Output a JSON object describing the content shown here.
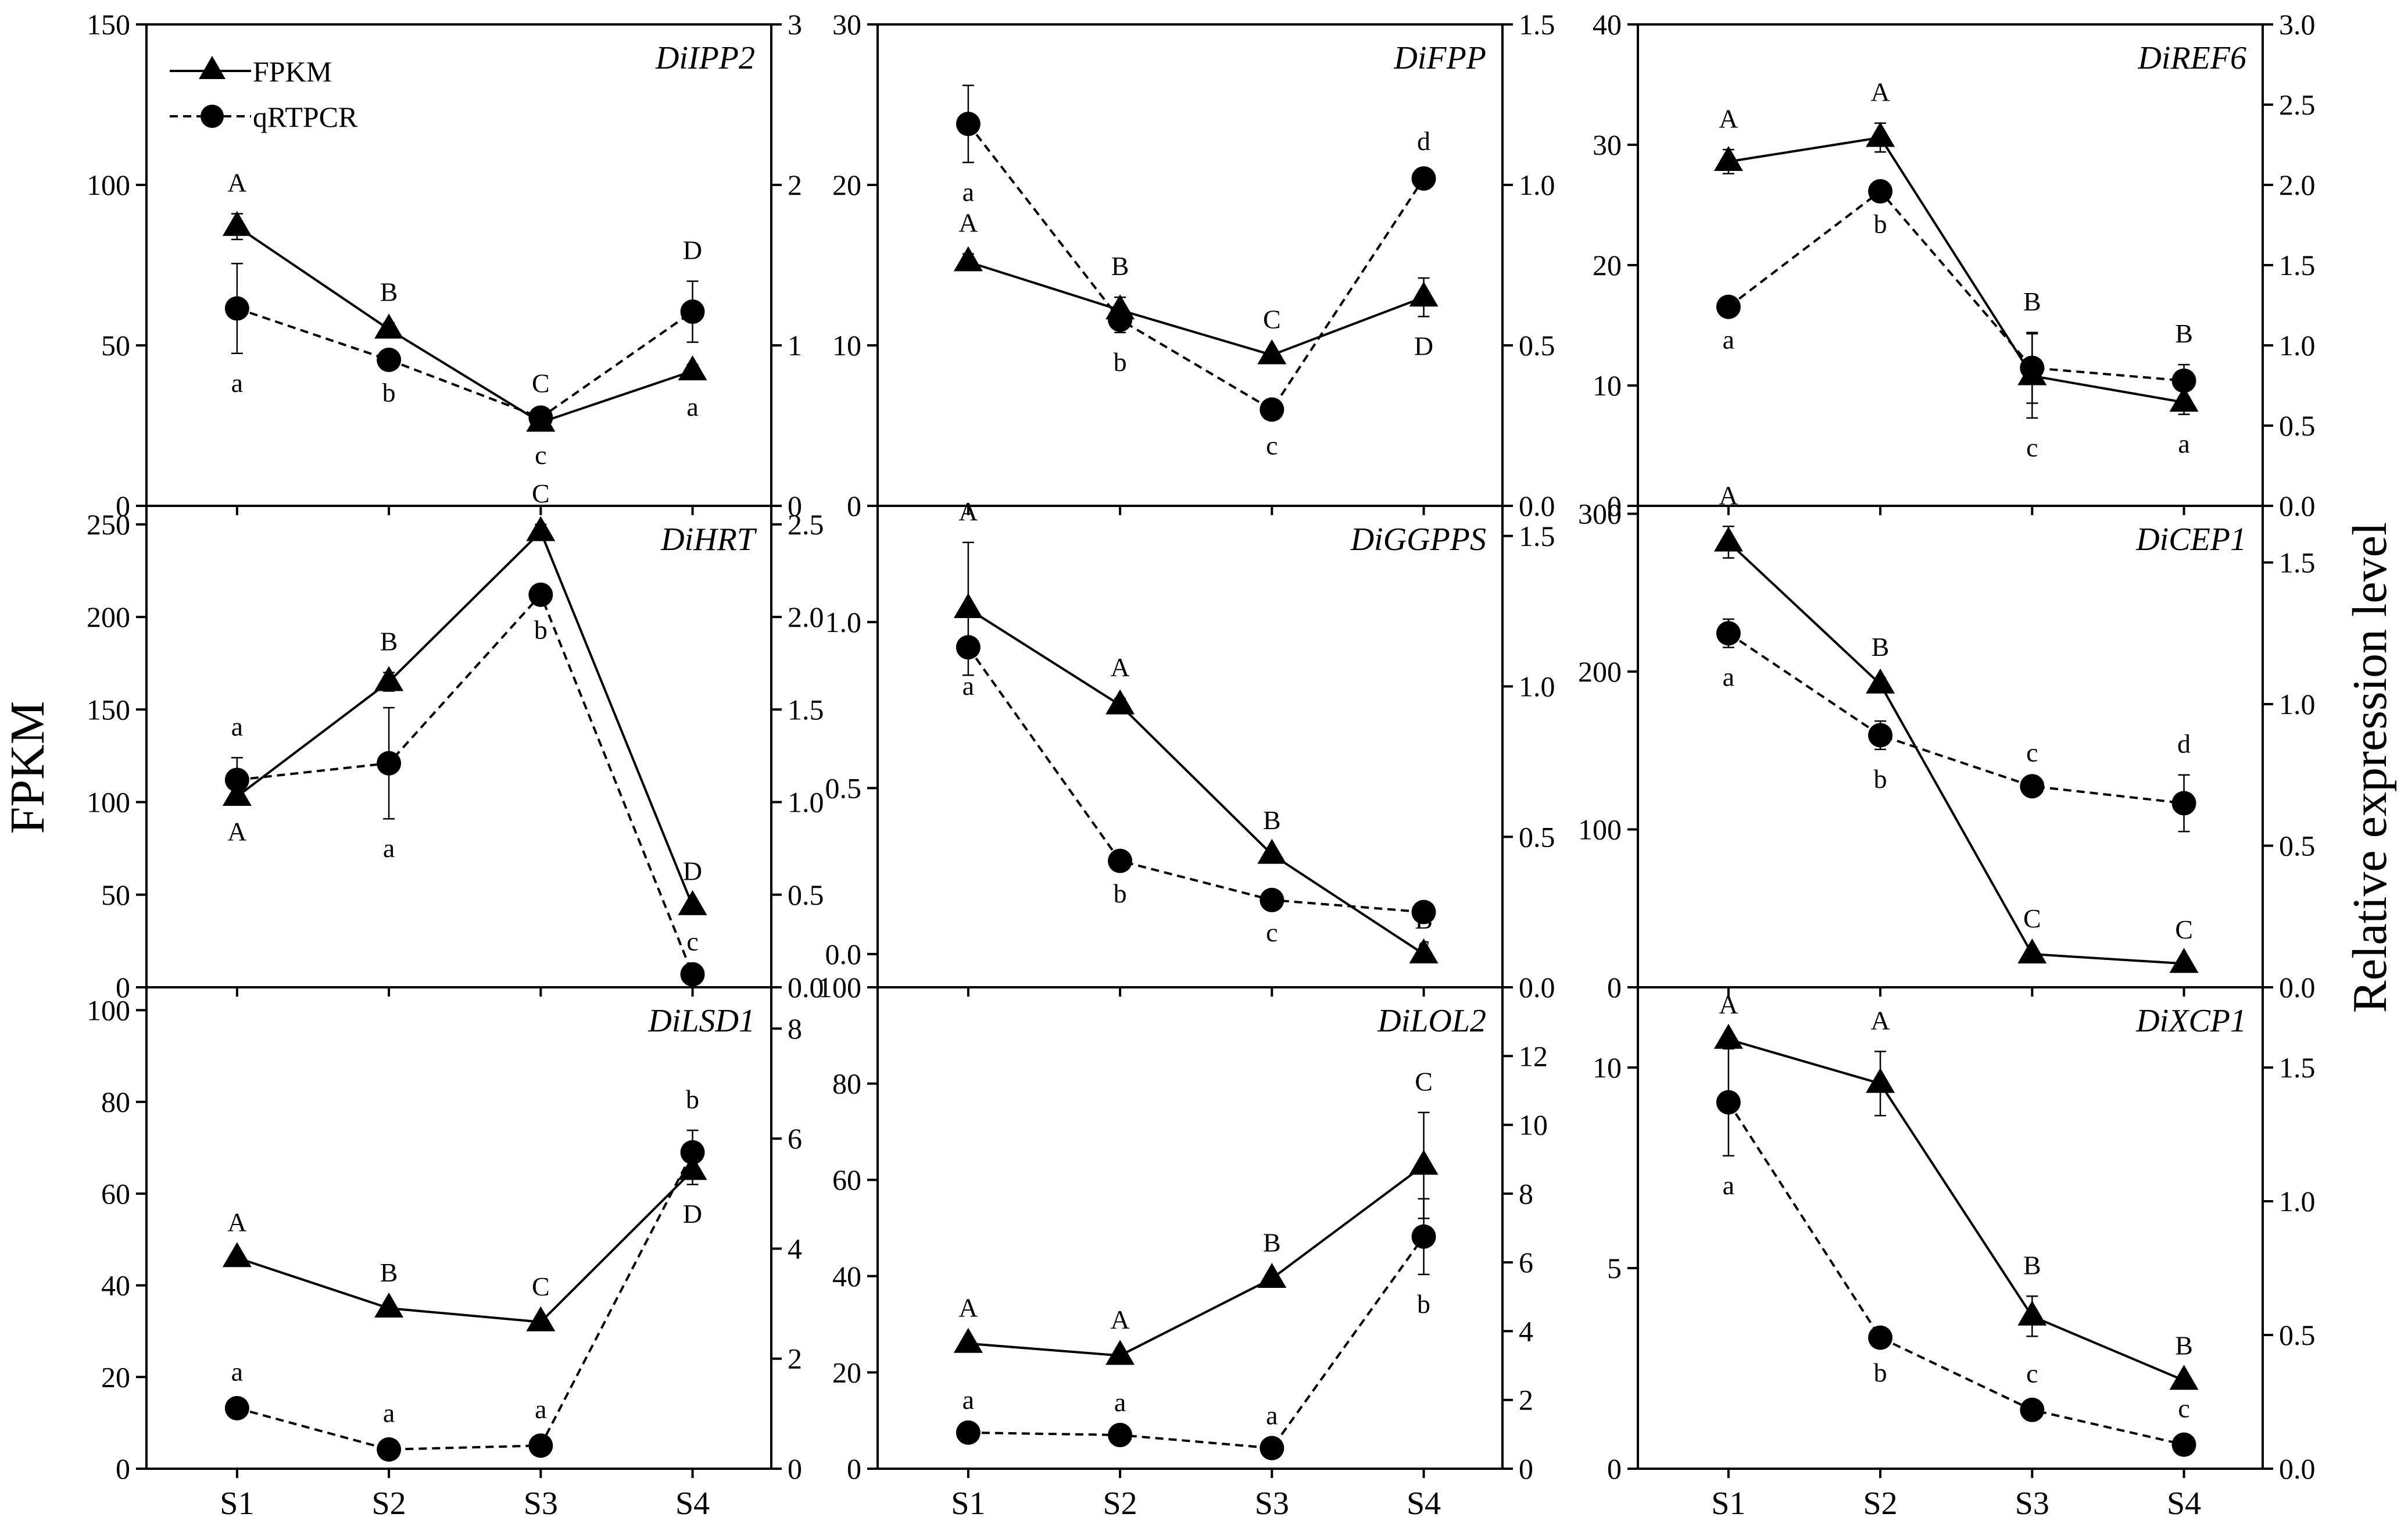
{
  "figure": {
    "ylabel_left": "FPKM",
    "ylabel_right": "Relative expression level",
    "legend": {
      "fpkm_label": "FPKM",
      "qrt_label": "qRTPCR"
    },
    "x_categories": [
      "S1",
      "S2",
      "S3",
      "S4"
    ]
  },
  "chart_data": [
    {
      "type": "line",
      "title": "DiIPP2",
      "categories": [
        "S1",
        "S2",
        "S3",
        "S4"
      ],
      "ylim_left": [
        0,
        150
      ],
      "yticks_left": [
        0,
        50,
        100,
        150
      ],
      "ylim_right": [
        0,
        3
      ],
      "yticks_right": [
        0,
        1,
        2,
        3
      ],
      "series": [
        {
          "name": "FPKM",
          "axis": "left",
          "values": [
            87,
            55,
            26,
            42
          ],
          "errors": [
            4,
            2,
            1,
            2
          ],
          "letters": [
            "A",
            "B",
            "c",
            "a"
          ],
          "letter_pos": [
            "above",
            "above",
            "below",
            "below"
          ]
        },
        {
          "name": "qRTPCR",
          "axis": "right",
          "values": [
            1.23,
            0.91,
            0.55,
            1.21
          ],
          "errors": [
            0.28,
            0.02,
            0.02,
            0.19
          ],
          "letters": [
            "a",
            "b",
            "C",
            "D"
          ],
          "letter_pos": [
            "below",
            "below",
            "above",
            "above"
          ]
        }
      ]
    },
    {
      "type": "line",
      "title": "DiFPP",
      "categories": [
        "S1",
        "S2",
        "S3",
        "S4"
      ],
      "ylim_left": [
        0,
        30
      ],
      "yticks_left": [
        0,
        10,
        20,
        30
      ],
      "ylim_right": [
        0,
        1.5
      ],
      "yticks_right": [
        0.0,
        0.5,
        1.0,
        1.5
      ],
      "series": [
        {
          "name": "FPKM",
          "axis": "left",
          "values": [
            15.2,
            12.2,
            9.4,
            13.0
          ],
          "errors": [
            0.5,
            0.8,
            0.3,
            1.2
          ],
          "letters": [
            "A",
            "B",
            "C",
            "D"
          ],
          "letter_pos": [
            "above",
            "above",
            "above",
            "below"
          ]
        },
        {
          "name": "qRTPCR",
          "axis": "right",
          "values": [
            1.19,
            0.58,
            0.3,
            1.02
          ],
          "errors": [
            0.12,
            0.04,
            0.02,
            0.02
          ],
          "letters": [
            "a",
            "b",
            "c",
            "d"
          ],
          "letter_pos": [
            "below",
            "below",
            "below",
            "above"
          ]
        }
      ]
    },
    {
      "type": "line",
      "title": "DiREF6",
      "categories": [
        "S1",
        "S2",
        "S3",
        "S4"
      ],
      "ylim_left": [
        0,
        40
      ],
      "yticks_left": [
        0,
        10,
        20,
        30,
        40
      ],
      "ylim_right": [
        0,
        3
      ],
      "yticks_right": [
        0.0,
        0.5,
        1.0,
        1.5,
        2.0,
        2.5,
        3.0
      ],
      "series": [
        {
          "name": "FPKM",
          "axis": "left",
          "values": [
            28.6,
            30.6,
            10.8,
            8.6
          ],
          "errors": [
            1.0,
            1.2,
            3.5,
            1.0
          ],
          "letters": [
            "A",
            "A",
            "c",
            "a"
          ],
          "letter_pos": [
            "above",
            "above",
            "below",
            "below"
          ]
        },
        {
          "name": "qRTPCR",
          "axis": "right",
          "values": [
            1.24,
            1.96,
            0.86,
            0.78
          ],
          "errors": [
            0.02,
            0.02,
            0.22,
            0.1
          ],
          "letters": [
            "a",
            "b",
            "B",
            "B"
          ],
          "letter_pos": [
            "below",
            "below",
            "above",
            "above"
          ]
        }
      ]
    },
    {
      "type": "line",
      "title": "DiHRT",
      "categories": [
        "S1",
        "S2",
        "S3",
        "S4"
      ],
      "ylim_left": [
        0,
        260
      ],
      "yticks_left": [
        0,
        50,
        100,
        150,
        200,
        250
      ],
      "ylim_right": [
        0,
        2.6
      ],
      "yticks_right": [
        0.0,
        0.5,
        1.0,
        1.5,
        2.0,
        2.5
      ],
      "series": [
        {
          "name": "FPKM",
          "axis": "left",
          "values": [
            103,
            165,
            246,
            44
          ],
          "errors": [
            3,
            5,
            4,
            2
          ],
          "letters": [
            "A",
            "B",
            "C",
            "D"
          ],
          "letter_pos": [
            "below",
            "above",
            "above",
            "above"
          ]
        },
        {
          "name": "qRTPCR",
          "axis": "right",
          "values": [
            1.12,
            1.21,
            2.12,
            0.07
          ],
          "errors": [
            0.12,
            0.3,
            0.03,
            0.01
          ],
          "letters": [
            "a",
            "a",
            "b",
            "c"
          ],
          "letter_pos": [
            "above",
            "below",
            "below",
            "above"
          ]
        }
      ]
    },
    {
      "type": "line",
      "title": "DiGGPPS",
      "categories": [
        "S1",
        "S2",
        "S3",
        "S4"
      ],
      "ylim_left": [
        -0.1,
        1.35
      ],
      "yticks_left": [
        0.0,
        0.5,
        1.0
      ],
      "ylim_right": [
        0,
        1.6
      ],
      "yticks_right": [
        0.0,
        0.5,
        1.0,
        1.5
      ],
      "series": [
        {
          "name": "FPKM",
          "axis": "left",
          "values": [
            1.04,
            0.75,
            0.3,
            0.0
          ],
          "errors": [
            0.2,
            0.02,
            0.01,
            0.01
          ],
          "letters": [
            "A",
            "A",
            "B",
            "B"
          ],
          "letter_pos": [
            "above",
            "above",
            "above",
            "above"
          ]
        },
        {
          "name": "qRTPCR",
          "axis": "right",
          "values": [
            1.13,
            0.42,
            0.29,
            0.25
          ],
          "errors": [
            0.03,
            0.01,
            0.01,
            0.01
          ],
          "letters": [
            "a",
            "b",
            "c",
            "c"
          ],
          "letter_pos": [
            "below",
            "below",
            "below",
            "below"
          ]
        }
      ]
    },
    {
      "type": "line",
      "title": "DiCEP1",
      "categories": [
        "S1",
        "S2",
        "S3",
        "S4"
      ],
      "ylim_left": [
        0,
        305
      ],
      "yticks_left": [
        0,
        100,
        200,
        300
      ],
      "ylim_right": [
        0,
        1.7
      ],
      "yticks_right": [
        0.0,
        0.5,
        1.0,
        1.5
      ],
      "series": [
        {
          "name": "FPKM",
          "axis": "left",
          "values": [
            282,
            192,
            21,
            15
          ],
          "errors": [
            10,
            4,
            3,
            2
          ],
          "letters": [
            "A",
            "B",
            "C",
            "C"
          ],
          "letter_pos": [
            "above",
            "above",
            "above",
            "above"
          ]
        },
        {
          "name": "qRTPCR",
          "axis": "right",
          "values": [
            1.25,
            0.89,
            0.71,
            0.65
          ],
          "errors": [
            0.05,
            0.05,
            0.01,
            0.1
          ],
          "letters": [
            "a",
            "b",
            "c",
            "d"
          ],
          "letter_pos": [
            "below",
            "below",
            "above",
            "above"
          ]
        }
      ]
    },
    {
      "type": "line",
      "title": "DiLSD1",
      "categories": [
        "S1",
        "S2",
        "S3",
        "S4"
      ],
      "ylim_left": [
        0,
        105
      ],
      "yticks_left": [
        0,
        20,
        40,
        60,
        80,
        100
      ],
      "ylim_right": [
        0,
        8.75
      ],
      "yticks_right": [
        0,
        2,
        4,
        6,
        8
      ],
      "series": [
        {
          "name": "FPKM",
          "axis": "left",
          "values": [
            46,
            35,
            32,
            65
          ],
          "errors": [
            1,
            1,
            1,
            3
          ],
          "letters": [
            "A",
            "B",
            "C",
            "D"
          ],
          "letter_pos": [
            "above",
            "above",
            "above",
            "below"
          ]
        },
        {
          "name": "qRTPCR",
          "axis": "right",
          "values": [
            1.1,
            0.35,
            0.42,
            5.75
          ],
          "errors": [
            0.1,
            0.1,
            0.1,
            0.4
          ],
          "letters": [
            "a",
            "a",
            "a",
            "b"
          ],
          "letter_pos": [
            "above",
            "above",
            "above",
            "above"
          ]
        }
      ]
    },
    {
      "type": "line",
      "title": "DiLOL2",
      "categories": [
        "S1",
        "S2",
        "S3",
        "S4"
      ],
      "ylim_left": [
        0,
        100
      ],
      "yticks_left": [
        0,
        20,
        40,
        60,
        80,
        100
      ],
      "ylim_right": [
        0,
        14
      ],
      "yticks_right": [
        0,
        2,
        4,
        6,
        8,
        10,
        12
      ],
      "series": [
        {
          "name": "FPKM",
          "axis": "left",
          "values": [
            26,
            23.5,
            39.5,
            63
          ],
          "errors": [
            1,
            1,
            1,
            11
          ],
          "letters": [
            "A",
            "A",
            "B",
            "C"
          ],
          "letter_pos": [
            "above",
            "above",
            "above",
            "above"
          ]
        },
        {
          "name": "qRTPCR",
          "axis": "right",
          "values": [
            1.05,
            0.98,
            0.6,
            6.75
          ],
          "errors": [
            0.05,
            0.05,
            0.05,
            1.1
          ],
          "letters": [
            "a",
            "a",
            "a",
            "b"
          ],
          "letter_pos": [
            "above",
            "above",
            "above",
            "below"
          ]
        }
      ]
    },
    {
      "type": "line",
      "title": "DiXCP1",
      "categories": [
        "S1",
        "S2",
        "S3",
        "S4"
      ],
      "ylim_left": [
        0,
        12
      ],
      "yticks_left": [
        0,
        5,
        10
      ],
      "ylim_right": [
        0,
        1.8
      ],
      "yticks_right": [
        0.0,
        0.5,
        1.0,
        1.5
      ],
      "series": [
        {
          "name": "FPKM",
          "axis": "left",
          "values": [
            10.7,
            9.6,
            3.8,
            2.2
          ],
          "errors": [
            0.1,
            0.8,
            0.5,
            0.1
          ],
          "letters": [
            "A",
            "A",
            "B",
            "B"
          ],
          "letter_pos": [
            "above",
            "above",
            "above",
            "above"
          ]
        },
        {
          "name": "qRTPCR",
          "axis": "right",
          "values": [
            1.37,
            0.49,
            0.22,
            0.09
          ],
          "errors": [
            0.2,
            0.02,
            0.02,
            0.02
          ],
          "letters": [
            "a",
            "b",
            "c",
            "c"
          ],
          "letter_pos": [
            "below",
            "below",
            "above",
            "above"
          ]
        }
      ]
    }
  ]
}
